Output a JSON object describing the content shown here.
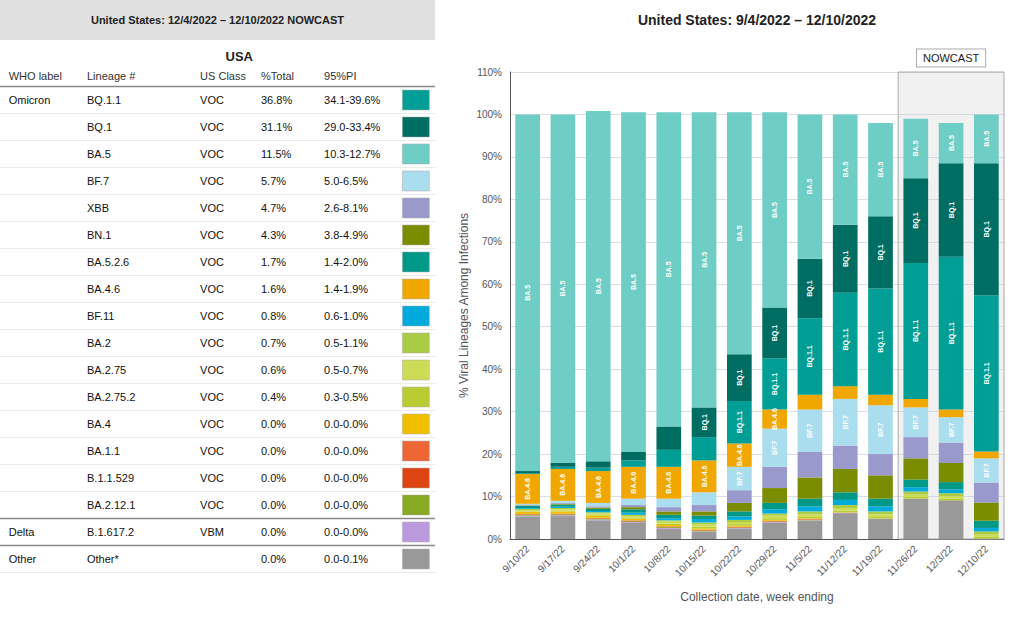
{
  "chart_data": [
    {
      "type": "table",
      "title": "United States: 12/4/2022 – 12/10/2022 NOWCAST",
      "subtitle": "USA",
      "headers": [
        "WHO label",
        "Lineage #",
        "US Class",
        "%Total",
        "95%PI"
      ],
      "rows": [
        [
          "Omicron",
          "BQ.1.1",
          "VOC",
          "36.8%",
          "34.1-39.6%"
        ],
        [
          null,
          "BQ.1",
          "VOC",
          "31.1%",
          "29.0-33.4%"
        ],
        [
          null,
          "BA.5",
          "VOC",
          "11.5%",
          "10.3-12.7%"
        ],
        [
          null,
          "BF.7",
          "VOC",
          "5.7%",
          "5.0-6.5%"
        ],
        [
          null,
          "XBB",
          "VOC",
          "4.7%",
          "2.6-8.1%"
        ],
        [
          null,
          "BN.1",
          "VOC",
          "4.3%",
          "3.8-4.9%"
        ],
        [
          null,
          "BA.5.2.6",
          "VOC",
          "1.7%",
          "1.4-2.0%"
        ],
        [
          null,
          "BA.4.6",
          "VOC",
          "1.6%",
          "1.4-1.9%"
        ],
        [
          null,
          "BF.11",
          "VOC",
          "0.8%",
          "0.6-1.0%"
        ],
        [
          null,
          "BA.2",
          "VOC",
          "0.7%",
          "0.5-1.1%"
        ],
        [
          null,
          "BA.2.75",
          "VOC",
          "0.6%",
          "0.5-0.7%"
        ],
        [
          null,
          "BA.2.75.2",
          "VOC",
          "0.4%",
          "0.3-0.5%"
        ],
        [
          null,
          "BA.4",
          "VOC",
          "0.0%",
          "0.0-0.0%"
        ],
        [
          null,
          "BA.1.1",
          "VOC",
          "0.0%",
          "0.0-0.0%"
        ],
        [
          null,
          "B.1.1.529",
          "VOC",
          "0.0%",
          "0.0-0.0%"
        ],
        [
          null,
          "BA.2.12.1",
          "VOC",
          "0.0%",
          "0.0-0.0%"
        ],
        [
          "Delta",
          "B.1.617.2",
          "VBM",
          "0.0%",
          "0.0-0.0%"
        ],
        [
          "Other",
          "Other*",
          null,
          "0.0%",
          "0.0-0.1%"
        ]
      ],
      "colors": [
        "#009e94",
        "#006d63",
        "#6ecdc4",
        "#aaddee",
        "#9999cc",
        "#7a8c00",
        "#009988",
        "#f0a800",
        "#00aadd",
        "#aacc44",
        "#ccdd55",
        "#bbcc33",
        "#f0c000",
        "#ee6633",
        "#dd4411",
        "#88aa22",
        "#bb99dd",
        "#999999"
      ]
    },
    {
      "type": "bar",
      "title": "United States: 9/4/2022 – 12/10/2022",
      "x_label": "Collection date, week ending",
      "y_label": "% Viral Lineages Among Infections",
      "categories": [
        "9/10/22",
        "9/17/22",
        "9/24/22",
        "10/1/22",
        "10/8/22",
        "10/15/22",
        "10/22/22",
        "10/29/22",
        "11/5/22",
        "11/12/22",
        "11/19/22",
        "11/26/22",
        "12/3/22",
        "12/10/22"
      ],
      "stacked": true,
      "grid": true,
      "ylim": [
        0,
        110
      ],
      "yticks": [
        {
          "value": 0,
          "label": "0%"
        },
        {
          "value": 10,
          "label": "10%"
        },
        {
          "value": 20,
          "label": "20%"
        },
        {
          "value": 30,
          "label": "30%"
        },
        {
          "value": 40,
          "label": "40%"
        },
        {
          "value": 50,
          "label": "50%"
        },
        {
          "value": 60,
          "label": "60%"
        },
        {
          "value": 70,
          "label": "70%"
        },
        {
          "value": 80,
          "label": "80%"
        },
        {
          "value": 90,
          "label": "90%"
        },
        {
          "value": 100,
          "label": "100%"
        },
        {
          "value": 110,
          "label": "110%"
        }
      ],
      "shaded_span": {
        "from": "11/26/22",
        "to": "12/10/22",
        "label": "NOWCAST"
      },
      "series": [
        {
          "name": "Other",
          "color": "#999999",
          "values": [
            5.3,
            5.4,
            4.4,
            3.8,
            2.4,
            1.7,
            2.5,
            3.9,
            4.3,
            6.1,
            4.7,
            9.5,
            9.1,
            0.1
          ]
        },
        {
          "name": "B.1.617.2",
          "color": "#bb99dd",
          "values": [
            0.2,
            0.2,
            0.2,
            0.2,
            0.2,
            0.1,
            0.1,
            0.1,
            0.1,
            0.1,
            0.1,
            0.0,
            0.0,
            0.0
          ]
        },
        {
          "name": "BA.2.12.1",
          "color": "#88aa22",
          "values": [
            0.2,
            0.2,
            0.2,
            0.2,
            0.2,
            0.2,
            0.1,
            0.1,
            0.1,
            0.0,
            0.0,
            0.0,
            0.0,
            0.0
          ]
        },
        {
          "name": "B.1.1.529",
          "color": "#dd4411",
          "values": [
            0.1,
            0.1,
            0.1,
            0.1,
            0.1,
            0.1,
            0.1,
            0.1,
            0.1,
            0.0,
            0.0,
            0.0,
            0.0,
            0.0
          ]
        },
        {
          "name": "BA.1.1",
          "color": "#ee6633",
          "values": [
            0.1,
            0.1,
            0.1,
            0.1,
            0.1,
            0.1,
            0.1,
            0.1,
            0.1,
            0.0,
            0.0,
            0.0,
            0.0,
            0.0
          ]
        },
        {
          "name": "BA.4",
          "color": "#f0c000",
          "values": [
            0.5,
            0.5,
            0.5,
            0.4,
            0.3,
            0.3,
            0.2,
            0.2,
            0.1,
            0.1,
            0.0,
            0.0,
            0.0,
            0.0
          ]
        },
        {
          "name": "BA.2.75.2",
          "color": "#bbcc33",
          "values": [
            0.1,
            0.2,
            0.2,
            0.3,
            0.3,
            0.4,
            0.4,
            0.4,
            0.4,
            0.4,
            0.4,
            0.4,
            0.4,
            0.4
          ]
        },
        {
          "name": "BA.2.75",
          "color": "#ccdd55",
          "values": [
            0.3,
            0.3,
            0.3,
            0.3,
            0.5,
            0.5,
            0.5,
            0.6,
            0.6,
            0.6,
            0.6,
            0.6,
            0.6,
            0.6
          ]
        },
        {
          "name": "BA.2",
          "color": "#aacc44",
          "values": [
            0.3,
            0.3,
            0.3,
            0.3,
            0.3,
            0.5,
            0.5,
            0.5,
            0.7,
            0.7,
            0.7,
            0.7,
            0.7,
            0.7
          ]
        },
        {
          "name": "BF.11",
          "color": "#00aadd",
          "values": [
            0.2,
            0.3,
            0.3,
            0.5,
            0.5,
            0.8,
            0.8,
            1.0,
            1.2,
            1.2,
            1.2,
            1.0,
            0.9,
            0.8
          ]
        },
        {
          "name": "BA.5.2.6",
          "color": "#009988",
          "values": [
            0.5,
            0.5,
            0.5,
            0.8,
            0.8,
            0.8,
            1.2,
            1.5,
            1.8,
            1.8,
            1.8,
            1.8,
            1.7,
            1.7
          ]
        },
        {
          "name": "BN.1",
          "color": "#7a8c00",
          "values": [
            0.1,
            0.2,
            0.3,
            0.5,
            0.8,
            1.0,
            2.0,
            3.5,
            5.0,
            5.5,
            5.5,
            5.0,
            4.5,
            4.3
          ]
        },
        {
          "name": "XBB",
          "color": "#9999cc",
          "values": [
            0.1,
            0.2,
            0.3,
            0.5,
            1.0,
            1.5,
            3.0,
            5.0,
            6.0,
            5.5,
            5.0,
            5.0,
            4.8,
            4.7
          ]
        },
        {
          "name": "BF.7",
          "color": "#aaddee",
          "values": [
            0.3,
            0.5,
            0.8,
            1.5,
            2.0,
            3.0,
            5.5,
            9.0,
            10.0,
            11.0,
            11.5,
            7.0,
            6.0,
            5.7
          ],
          "labels": [
            null,
            null,
            null,
            null,
            null,
            null,
            "BF.7",
            "BF.7",
            "BF.7",
            "BF.7",
            "BF.7",
            "BF.7",
            "BF.7",
            "BF.7"
          ]
        },
        {
          "name": "BA.4.6",
          "color": "#f0a800",
          "values": [
            7.0,
            7.5,
            7.5,
            7.5,
            7.5,
            7.5,
            5.5,
            4.5,
            3.5,
            3.0,
            2.5,
            2.0,
            1.8,
            1.6
          ],
          "labels": [
            "BA.4.6",
            "BA.4.6",
            "BA.4.6",
            "BA.4.6",
            "BA.4.6",
            "BA.4.6",
            "BA.4.6",
            "BA.4.6",
            null,
            null,
            null,
            null,
            null,
            null
          ]
        },
        {
          "name": "BQ.1.1",
          "color": "#009e94",
          "values": [
            0.2,
            0.5,
            0.8,
            1.5,
            4.0,
            5.5,
            10.0,
            12.0,
            18.0,
            22.0,
            25.0,
            32.0,
            36.0,
            36.8
          ],
          "labels": [
            null,
            null,
            null,
            null,
            null,
            null,
            "BQ.1.1",
            "BQ.1.1",
            "BQ.1.1",
            "BQ.1.1",
            "BQ.1.1",
            "BQ.1.1",
            "BQ.1.1",
            "BQ.1.1"
          ]
        },
        {
          "name": "BQ.1",
          "color": "#006d63",
          "values": [
            0.5,
            1.0,
            1.5,
            2.0,
            5.5,
            7.0,
            11.0,
            12.0,
            14.0,
            16.0,
            17.0,
            20.0,
            22.0,
            31.1
          ],
          "labels": [
            null,
            null,
            null,
            null,
            null,
            "BQ.1",
            "BQ.1",
            "BQ.1",
            "BQ.1",
            "BQ.1",
            "BQ.1",
            "BQ.1",
            "BQ.1",
            "BQ.1"
          ]
        },
        {
          "name": "BA.5",
          "color": "#6ecdc4",
          "values": [
            84.0,
            82.0,
            82.5,
            80.0,
            74.0,
            69.5,
            57.0,
            46.0,
            34.0,
            26.0,
            22.0,
            14.0,
            9.5,
            11.5
          ],
          "labels": [
            "BA.5",
            "BA.5",
            "BA.5",
            "BA.5",
            "BA.5",
            "BA.5",
            "BA.5",
            "BA.5",
            "BA.5",
            "BA.5",
            "BA.5",
            "BA.5",
            "BA.5",
            "BA.5"
          ]
        }
      ]
    }
  ]
}
